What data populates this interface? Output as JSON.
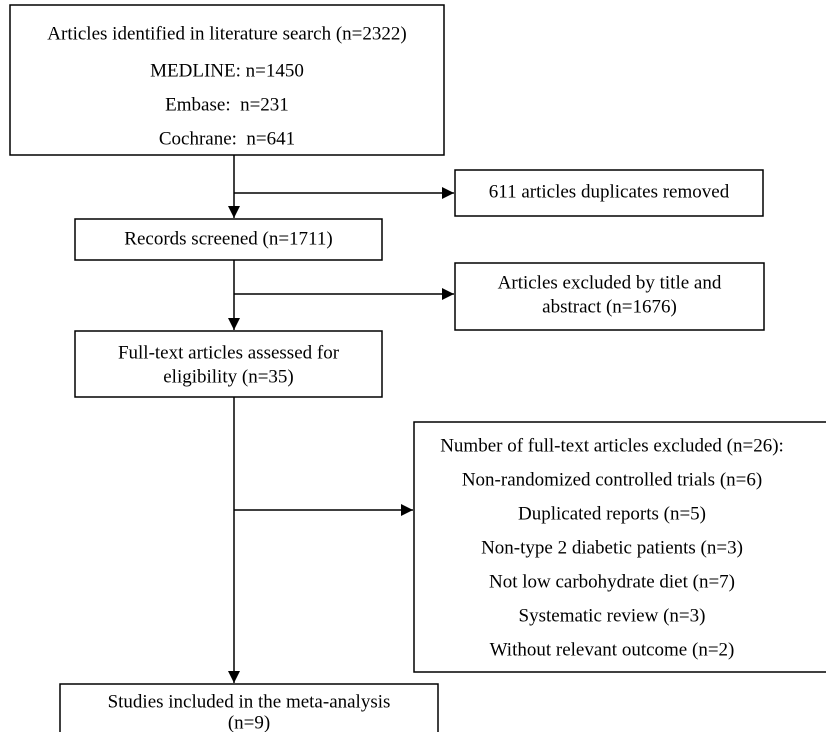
{
  "nodes": [
    {
      "lines": [
        "Articles identified in literature search (n=2322)",
        "MEDLINE: n=1450",
        "Embase:  n=231",
        "Cochrane:  n=641"
      ]
    },
    {
      "lines": [
        "611 articles duplicates removed"
      ]
    },
    {
      "lines": [
        "Records screened (n=1711)"
      ]
    },
    {
      "lines": [
        "Articles excluded by title and",
        "abstract (n=1676)"
      ]
    },
    {
      "lines": [
        "Full-text articles assessed for",
        "eligibility (n=35)"
      ]
    },
    {
      "lines": [
        "Number of full-text articles excluded (n=26):",
        "Non-randomized controlled trials (n=6)",
        "Duplicated reports (n=5)",
        "Non-type 2 diabetic patients (n=3)",
        "Not low carbohydrate diet (n=7)",
        "Systematic review (n=3)",
        "Without relevant outcome (n=2)"
      ]
    },
    {
      "lines": [
        "Studies included in the meta-analysis",
        "(n=9)"
      ]
    }
  ]
}
